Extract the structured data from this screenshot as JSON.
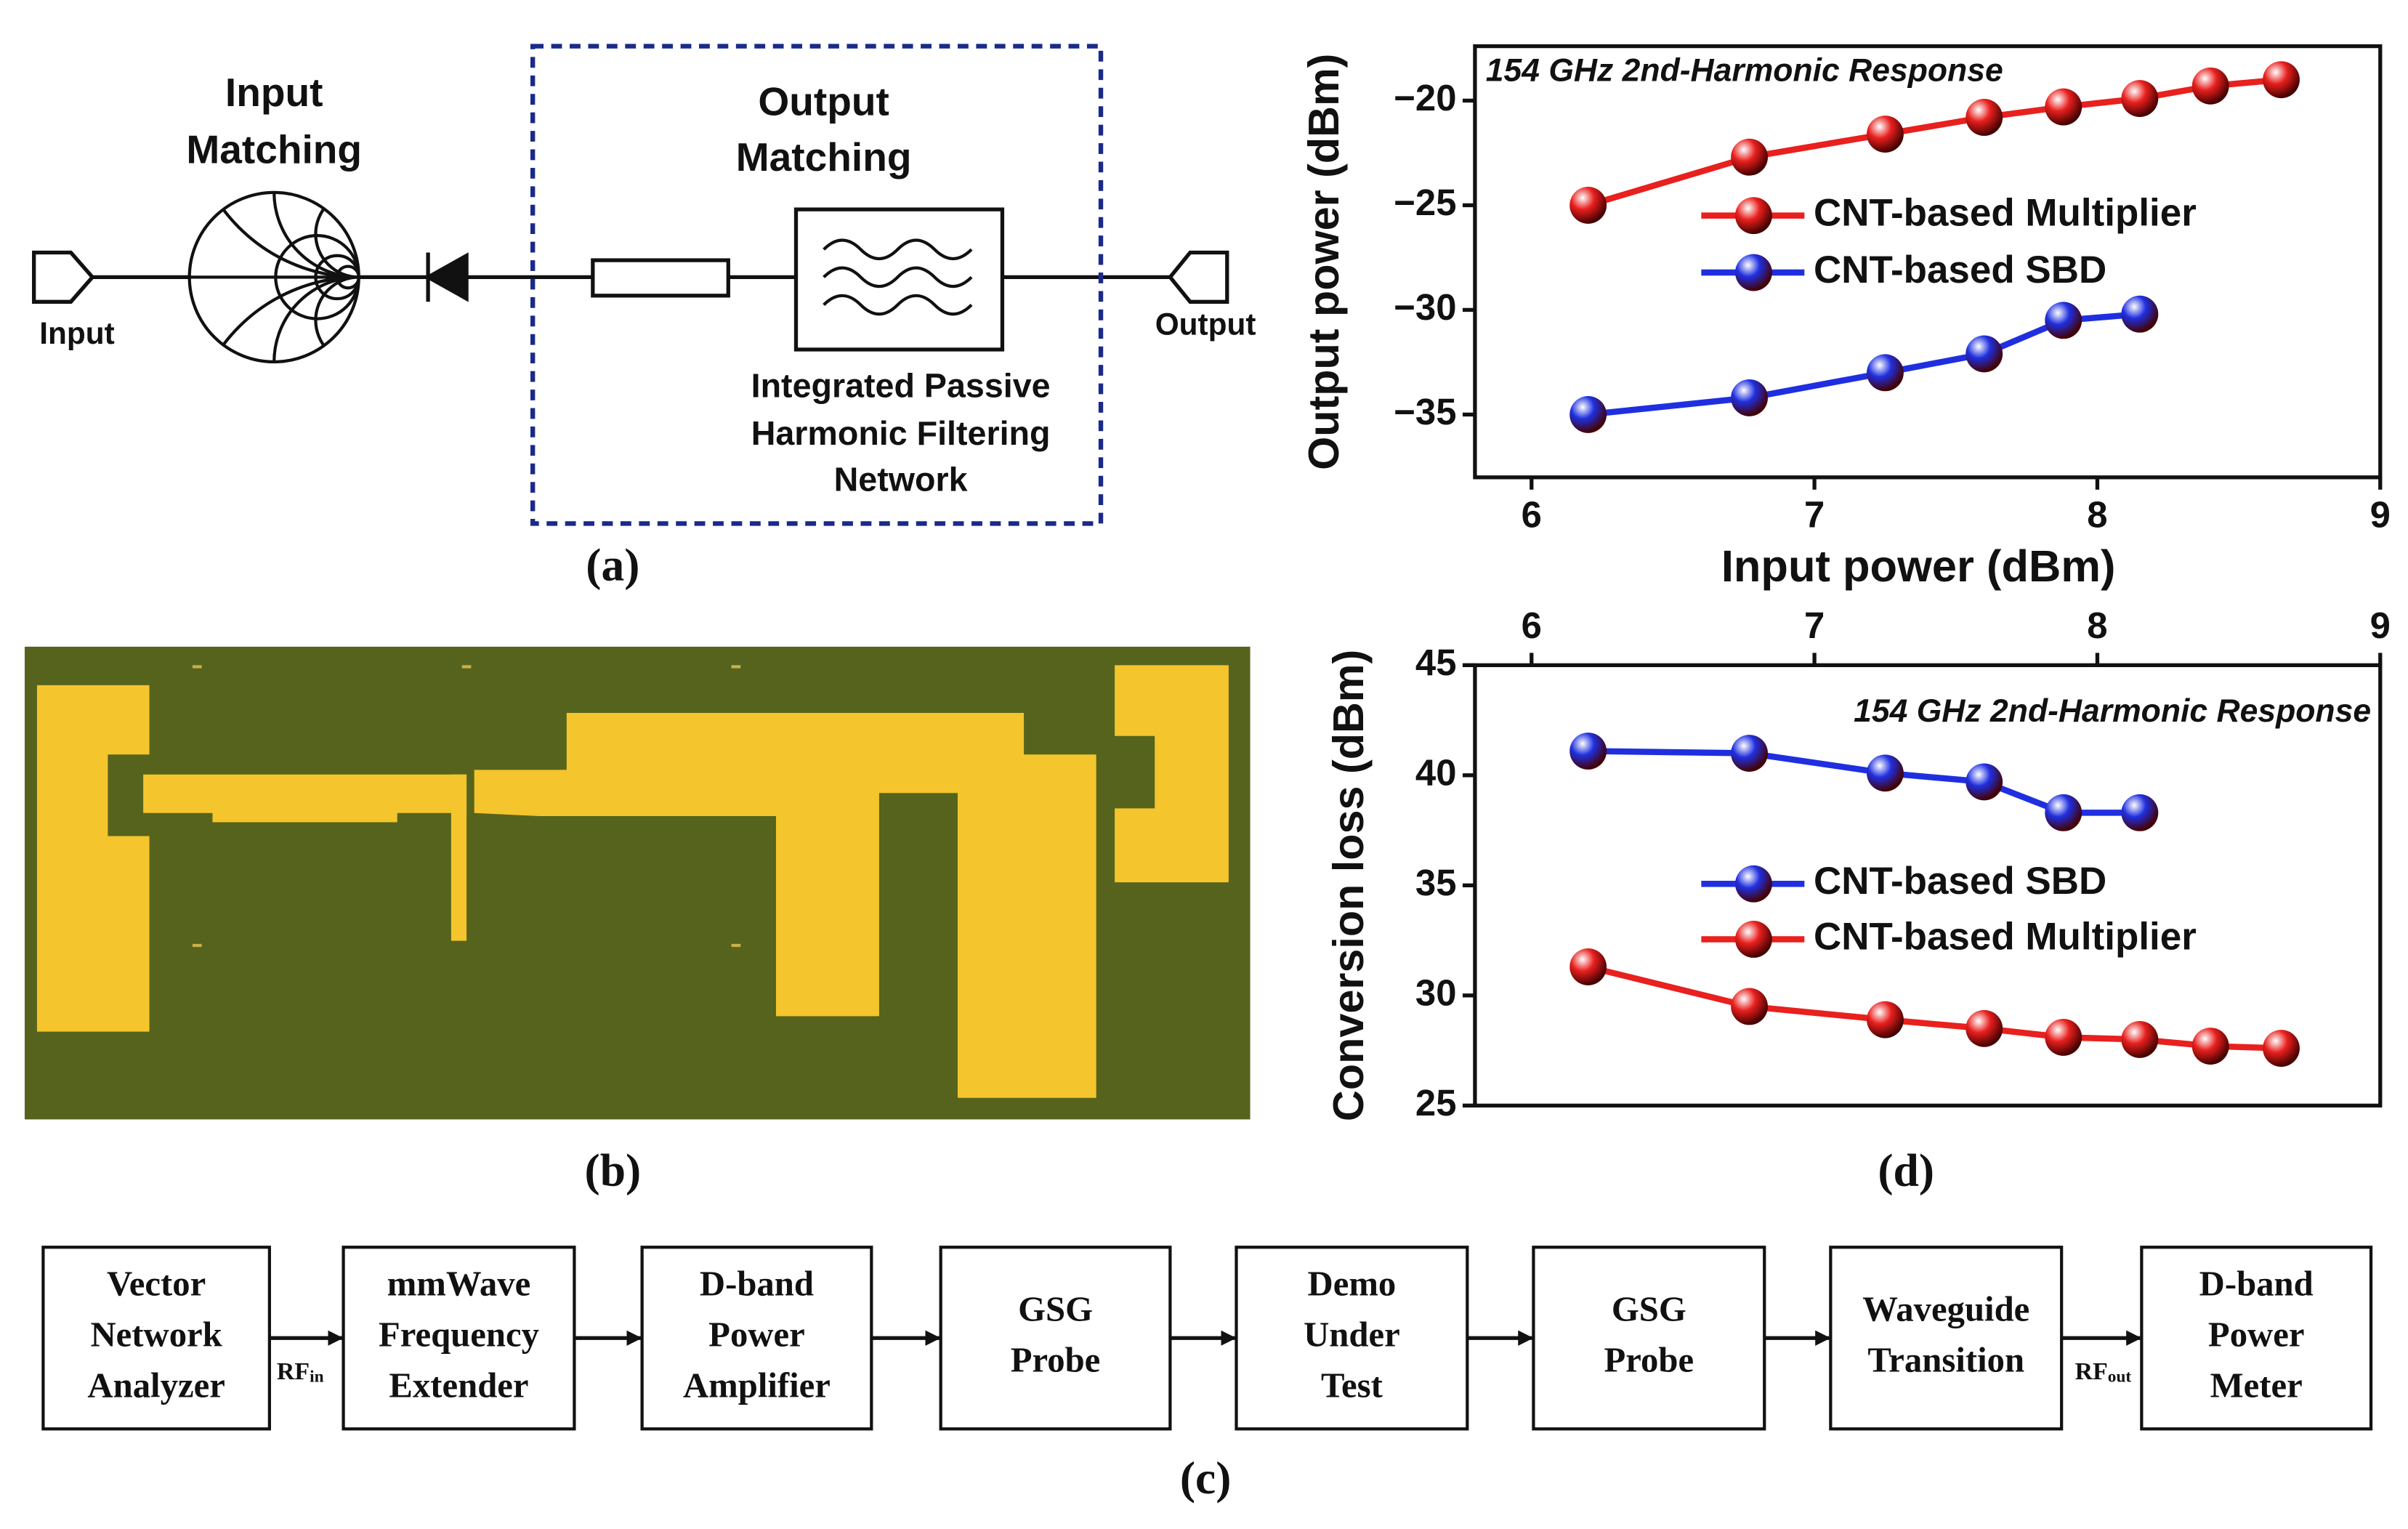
{
  "panel_a": {
    "input_matching": [
      "Input",
      "Matching"
    ],
    "output_matching": [
      "Output",
      "Matching"
    ],
    "filter_label": [
      "Integrated Passive",
      "Harmonic Filtering",
      "Network"
    ],
    "input": "Input",
    "output": "Output",
    "label": "(a)"
  },
  "panel_b": {
    "label": "(b)"
  },
  "panel_c": {
    "blocks": [
      [
        "Vector",
        "Network",
        "Analyzer"
      ],
      [
        "mmWave",
        "Frequency",
        "Extender"
      ],
      [
        "D-band",
        "Power",
        "Amplifier"
      ],
      [
        "GSG",
        "Probe"
      ],
      [
        "Demo",
        "Under",
        "Test"
      ],
      [
        "GSG",
        "Probe"
      ],
      [
        "Waveguide",
        "Transition"
      ],
      [
        "D-band",
        "Power",
        "Meter"
      ]
    ],
    "rf_in": {
      "main": "RF",
      "sub": "in"
    },
    "rf_out": {
      "main": "RF",
      "sub": "out"
    },
    "label": "(c)"
  },
  "panel_d": {
    "label": "(d)"
  },
  "chart_data": [
    {
      "type": "line",
      "annotation": "154 GHz 2nd-Harmonic Response",
      "x_label": "Input power (dBm)",
      "y_label": "Output power (dBm)",
      "xlim": [
        5.8,
        9
      ],
      "xticks": [
        6,
        7,
        8,
        9
      ],
      "ylim": [
        -38,
        -17.4
      ],
      "yticks": [
        {
          "value": -20,
          "label": "−20"
        },
        {
          "value": -25,
          "label": "−25"
        },
        {
          "value": -30,
          "label": "−30"
        },
        {
          "value": -35,
          "label": "−35"
        }
      ],
      "series": [
        {
          "name": "CNT-based Multiplier",
          "color": "#e8201e",
          "x": [
            6.2,
            6.77,
            7.25,
            7.6,
            7.88,
            8.15,
            8.4,
            8.65
          ],
          "values": [
            -25,
            -22.7,
            -21.6,
            -20.8,
            -20.3,
            -19.9,
            -19.3,
            -19.0
          ]
        },
        {
          "name": "CNT-based SBD",
          "color": "#1f2fe0",
          "x": [
            6.2,
            6.77,
            7.25,
            7.6,
            7.88,
            8.15
          ],
          "values": [
            -35,
            -34.2,
            -33.0,
            -32.1,
            -30.5,
            -30.2
          ]
        }
      ]
    },
    {
      "type": "line",
      "annotation": "154 GHz 2nd-Harmonic Response",
      "y_label": "Conversion loss (dBm)",
      "xlim": [
        5.8,
        9
      ],
      "xticks": [
        6,
        7,
        8,
        9
      ],
      "ylim": [
        25,
        45
      ],
      "yticks": [
        25,
        30,
        35,
        40,
        45
      ],
      "series": [
        {
          "name": "CNT-based SBD",
          "color": "#1f2fe0",
          "x": [
            6.2,
            6.77,
            7.25,
            7.6,
            7.88,
            8.15
          ],
          "values": [
            41.1,
            41.0,
            40.1,
            39.7,
            38.3,
            38.3
          ]
        },
        {
          "name": "CNT-based Multiplier",
          "color": "#e8201e",
          "x": [
            6.2,
            6.77,
            7.25,
            7.6,
            7.88,
            8.15,
            8.4,
            8.65
          ],
          "values": [
            31.3,
            29.5,
            28.9,
            28.5,
            28.1,
            28.0,
            27.7,
            27.6
          ]
        }
      ]
    }
  ]
}
